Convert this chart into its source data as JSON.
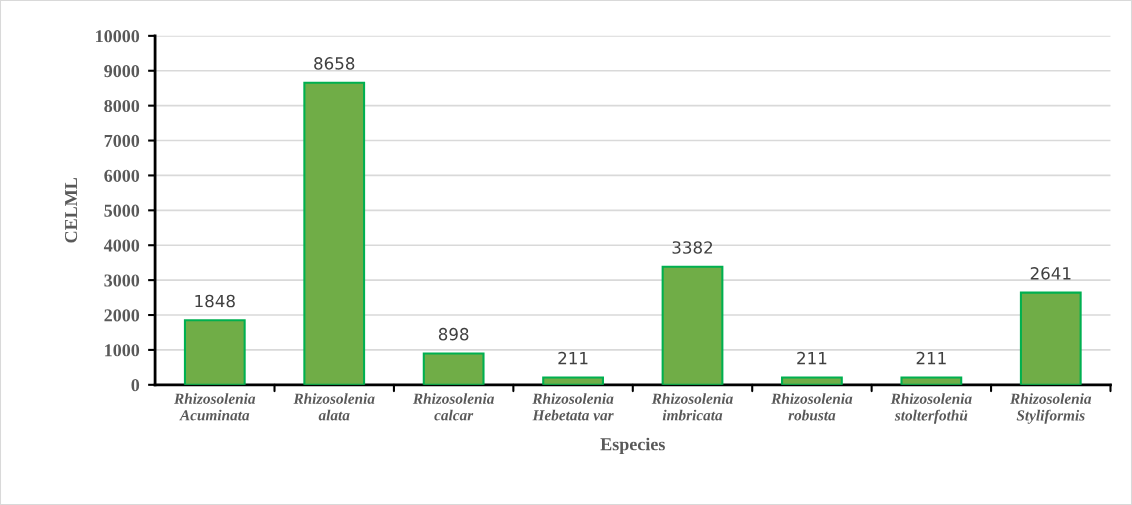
{
  "chart_data": {
    "type": "bar",
    "xlabel": "Especies",
    "ylabel": "CELML",
    "categories": [
      "Rhizosolenia\nAcuminata",
      "Rhizosolenia\nalata",
      "Rhizosolenia\ncalcar",
      "Rhizosolenia\nHebetata var",
      "Rhizosolenia\nimbricata",
      "Rhizosolenia\nrobusta",
      "Rhizosolenia\nstolterfothü",
      "Rhizosolenia\nStyliformis"
    ],
    "values": [
      1848,
      8658,
      898,
      211,
      3382,
      211,
      211,
      2641
    ],
    "color": "#70ad47",
    "ylim": [
      0,
      10000
    ],
    "yticks": [
      0,
      1000,
      2000,
      3000,
      4000,
      5000,
      6000,
      7000,
      8000,
      9000,
      10000
    ],
    "grid": "y",
    "data_labels": true,
    "legend": false
  }
}
